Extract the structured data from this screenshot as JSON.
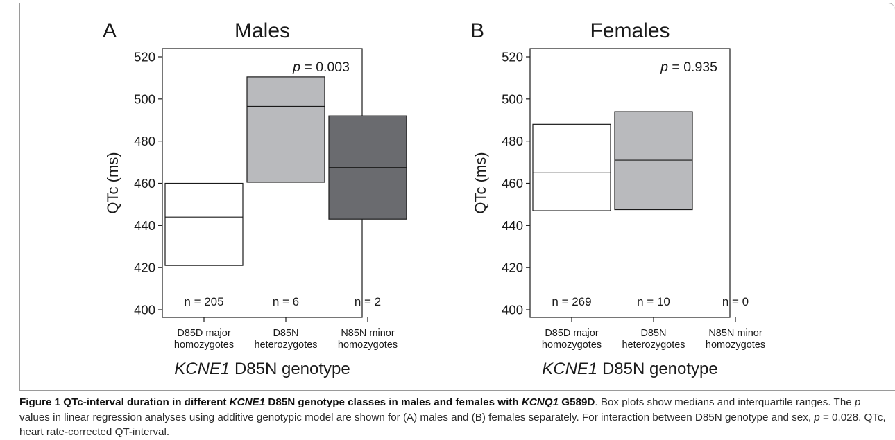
{
  "chart_data": [
    {
      "type": "box",
      "panel_label": "A",
      "title": "Males",
      "ylabel": "QTc (ms)",
      "xlabel_gene": "KCNE1",
      "xlabel_rest": " D85N genotype",
      "ylim": [
        400,
        520
      ],
      "yticks": [
        400,
        420,
        440,
        460,
        480,
        500,
        520
      ],
      "p_prefix": "p",
      "p_value": " = 0.003",
      "categories": [
        {
          "line1": "D85D major",
          "line2": "homozygotes"
        },
        {
          "line1": "D85N",
          "line2": "heterozygotes"
        },
        {
          "line1": "N85N minor",
          "line2": "homozygotes"
        }
      ],
      "boxes": [
        {
          "q1": 421,
          "median": 444,
          "q3": 460,
          "n_label": "n = 205",
          "color": "#ffffff"
        },
        {
          "q1": 460.5,
          "median": 496.5,
          "q3": 510.5,
          "n_label": "n = 6",
          "color": "#b9babd"
        },
        {
          "q1": 443,
          "median": 467.5,
          "q3": 492,
          "n_label": "n = 2",
          "color": "#6a6b6f"
        }
      ]
    },
    {
      "type": "box",
      "panel_label": "B",
      "title": "Females",
      "ylabel": "QTc (ms)",
      "xlabel_gene": "KCNE1",
      "xlabel_rest": " D85N genotype",
      "ylim": [
        400,
        520
      ],
      "yticks": [
        400,
        420,
        440,
        460,
        480,
        500,
        520
      ],
      "p_prefix": "p",
      "p_value": " = 0.935",
      "categories": [
        {
          "line1": "D85D major",
          "line2": "homozygotes"
        },
        {
          "line1": "D85N",
          "line2": "heterozygotes"
        },
        {
          "line1": "N85N minor",
          "line2": "homozygotes"
        }
      ],
      "boxes": [
        {
          "q1": 447,
          "median": 465,
          "q3": 488,
          "n_label": "n = 269",
          "color": "#ffffff"
        },
        {
          "q1": 447.5,
          "median": 471,
          "q3": 494,
          "n_label": "n = 10",
          "color": "#b9babd"
        },
        {
          "q1": null,
          "median": null,
          "q3": null,
          "n_label": "n = 0",
          "color": "#6a6b6f"
        }
      ]
    }
  ],
  "caption": {
    "fig_label": "Figure 1",
    "title_1": " QTc-interval duration in different ",
    "title_gene1": "KCNE1",
    "title_2": " D85N genotype classes in males and females with ",
    "title_gene2": "KCNQ1",
    "title_3": " G589D",
    "body_1": ". Box plots show medians and interquartile ranges. The ",
    "body_p1": "p",
    "body_2": " values in linear regression analyses using additive genotypic model are shown for (A) males and (B) females separately. For interaction between D85N genotype and sex, ",
    "body_p2": "p",
    "body_3": " = 0.028. QTc, heart rate-corrected QT-interval."
  }
}
